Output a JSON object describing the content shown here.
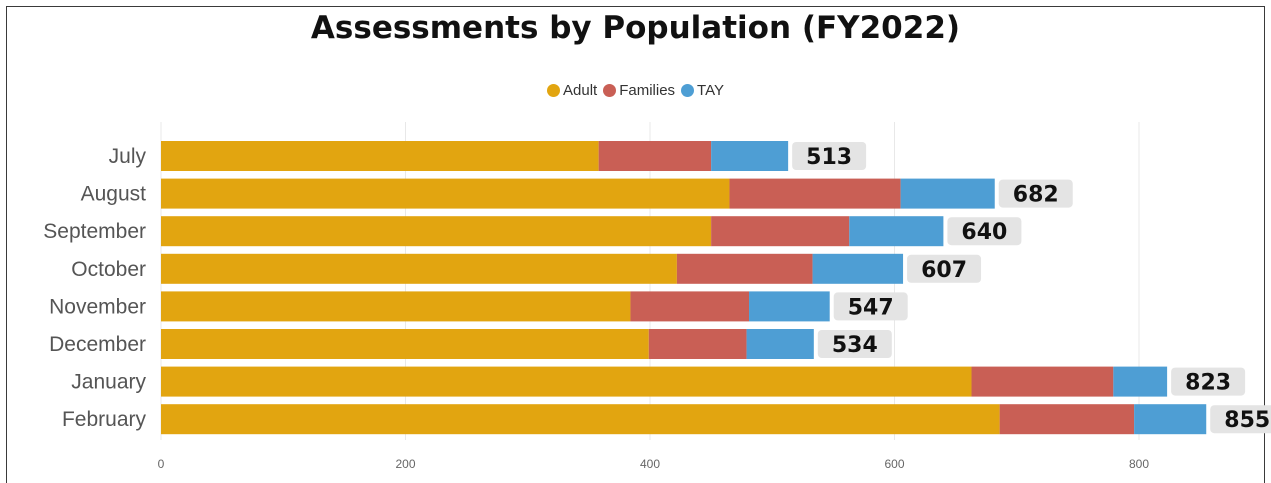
{
  "chart_data": {
    "type": "bar",
    "orientation": "horizontal",
    "stacked": true,
    "title": "Assessments by Population (FY2022)",
    "categories": [
      "July",
      "August",
      "September",
      "October",
      "November",
      "December",
      "January",
      "February"
    ],
    "series": [
      {
        "name": "Adult",
        "color": "#E2A510",
        "values": [
          358,
          465,
          450,
          422,
          384,
          399,
          663,
          686
        ]
      },
      {
        "name": "Families",
        "color": "#C95F55",
        "values": [
          92,
          140,
          113,
          111,
          97,
          80,
          116,
          110
        ]
      },
      {
        "name": "TAY",
        "color": "#4E9ED4",
        "values": [
          63,
          77,
          77,
          74,
          66,
          55,
          44,
          59
        ]
      }
    ],
    "totals": [
      "513",
      "682",
      "640",
      "607",
      "547",
      "534",
      "823",
      "855"
    ],
    "xlim": [
      0,
      900
    ],
    "xticks": [
      "0",
      "200",
      "400",
      "600",
      "800"
    ],
    "xtick_values": [
      0,
      200,
      400,
      600,
      800
    ],
    "grid": true,
    "legend_position": "top-center"
  }
}
